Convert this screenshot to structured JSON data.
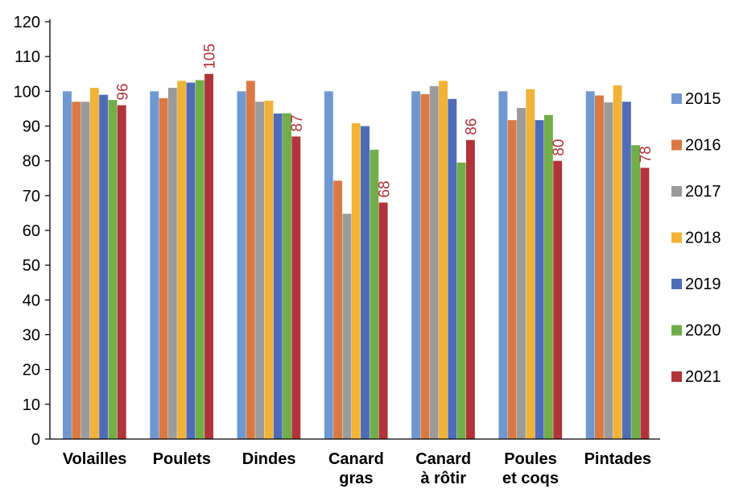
{
  "chart_data": {
    "type": "bar",
    "categories": [
      [
        "Volailles"
      ],
      [
        "Poulets"
      ],
      [
        "Dindes"
      ],
      [
        "Canard",
        "gras"
      ],
      [
        "Canard",
        "à rôtir"
      ],
      [
        "Poules",
        "et coqs"
      ],
      [
        "Pintades"
      ]
    ],
    "series": [
      {
        "name": "2015",
        "color": "#6f98d0",
        "values": [
          100,
          100,
          100,
          100,
          100,
          100,
          100
        ]
      },
      {
        "name": "2016",
        "color": "#d97a44",
        "values": [
          97,
          98,
          103,
          74.3,
          99.2,
          91.7,
          98.8
        ]
      },
      {
        "name": "2017",
        "color": "#9b9b9b",
        "values": [
          97,
          101,
          97,
          64.8,
          101.5,
          95.2,
          96.8
        ]
      },
      {
        "name": "2018",
        "color": "#f0b338",
        "values": [
          101,
          103,
          97.3,
          90.8,
          103,
          100.6,
          101.7
        ]
      },
      {
        "name": "2019",
        "color": "#4e6cb8",
        "values": [
          99,
          102.5,
          93.6,
          90,
          97.8,
          91.7,
          97
        ]
      },
      {
        "name": "2020",
        "color": "#72ad4a",
        "values": [
          97.5,
          103.2,
          93.7,
          83.2,
          79.5,
          93.2,
          84.5
        ]
      },
      {
        "name": "2021",
        "color": "#b0343a",
        "values": [
          96,
          105,
          87,
          68,
          86,
          80,
          78
        ]
      }
    ],
    "data_labels": [
      "96",
      "105",
      "87",
      "68",
      "86",
      "80",
      "78"
    ],
    "data_label_series": "2021",
    "data_label_color": "#b0343a",
    "yticks": [
      "0",
      "10",
      "20",
      "30",
      "40",
      "50",
      "60",
      "70",
      "80",
      "90",
      "100",
      "110",
      "120"
    ],
    "ylim": [
      0,
      120
    ],
    "grid": false,
    "legend_position": "right"
  }
}
